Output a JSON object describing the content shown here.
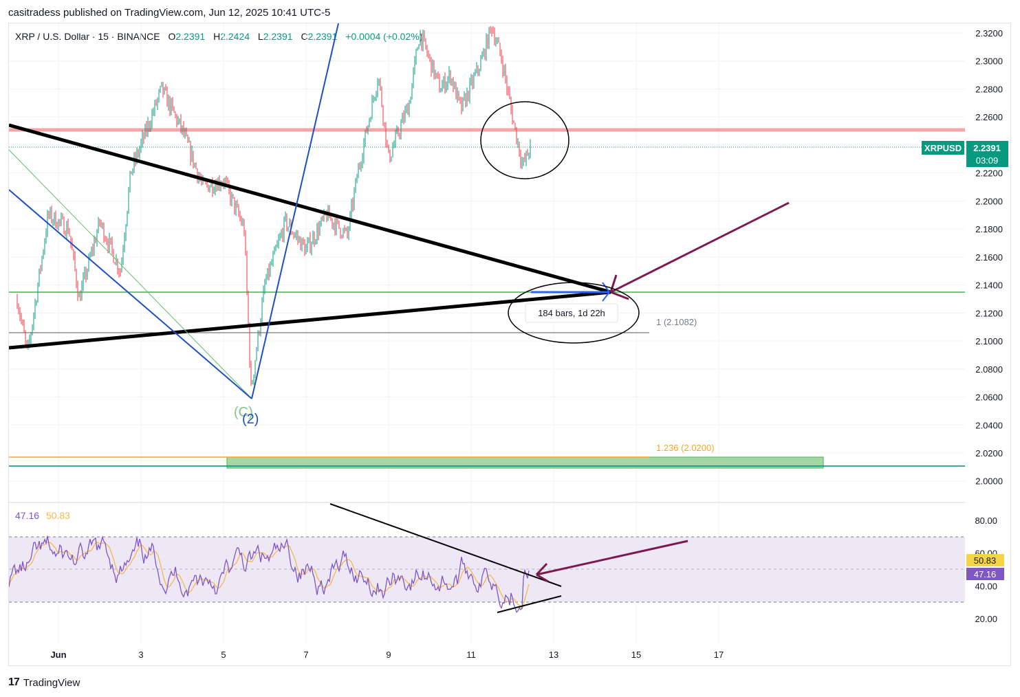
{
  "header": {
    "publisher": "casitradess published on TradingView.com, Jun 12, 2025 10:41 UTC-5"
  },
  "symbol": {
    "name": "XRP / U.S. Dollar · 15 · BINANCE",
    "o_label": "O",
    "o_value": "2.2391",
    "h_label": "H",
    "h_value": "2.2424",
    "l_label": "L",
    "l_value": "2.2391",
    "c_label": "C",
    "c_value": "2.2391",
    "change": "+0.0004 (+0.02%)"
  },
  "price_badge": {
    "ticker": "XRPUSD",
    "price": "2.2391",
    "countdown": "03:09"
  },
  "rsi_legend": {
    "rsi": "47.16",
    "ma": "50.83"
  },
  "rsi_badges": {
    "ma": "50.83",
    "rsi": "47.16"
  },
  "annotations": {
    "bars_label": "184 bars, 1d 22h",
    "fib_1": "1 (2.1082)",
    "fib_1236": "1.236 (2.0200)",
    "wave_c": "(C)",
    "wave_2": "(2)"
  },
  "footer": {
    "brand": "TradingView"
  },
  "colors": {
    "up": "#089981",
    "down": "#f23645",
    "resistance": "#f4a5a5",
    "support_green": "#4caf50",
    "fib_orange": "#f5a623",
    "teal_line": "#00897b",
    "blue_line": "#1e4fc2",
    "maroon_arrow": "#7b1a4f",
    "rsi_line": "#7e57c2",
    "rsi_ma": "#f5b94a",
    "rsi_band": "#ede7f6"
  },
  "chart_data": [
    {
      "type": "candlestick",
      "symbol": "XRPUSD",
      "timeframe": "15",
      "ylim": [
        2.0,
        2.33
      ],
      "y_ticks": [
        "2.3200",
        "2.3000",
        "2.2800",
        "2.2600",
        "2.2400",
        "2.2200",
        "2.2000",
        "2.1800",
        "2.1600",
        "2.1400",
        "2.1200",
        "2.1000",
        "2.0800",
        "2.0600",
        "2.0400",
        "2.0200",
        "2.0000"
      ],
      "x_ticks": [
        "Jun",
        "3",
        "5",
        "7",
        "9",
        "11",
        "13",
        "15",
        "17"
      ],
      "levels": [
        {
          "name": "resistance",
          "value": 2.251
        },
        {
          "name": "last_price",
          "value": 2.2391
        },
        {
          "name": "support",
          "value": 2.1355
        },
        {
          "name": "fib_1",
          "value": 2.1082
        },
        {
          "name": "fib_1.236",
          "value": 2.02
        },
        {
          "name": "teal",
          "value": 2.0135
        }
      ],
      "path_anchors": [
        {
          "x": "May 31 00:00",
          "y": 2.13
        },
        {
          "x": "May 31 06:00",
          "y": 2.09
        },
        {
          "x": "May 31 18:00",
          "y": 2.19
        },
        {
          "x": "Jun 1 06:00",
          "y": 2.18
        },
        {
          "x": "Jun 1 12:00",
          "y": 2.13
        },
        {
          "x": "Jun 2 00:00",
          "y": 2.185
        },
        {
          "x": "Jun 2 12:00",
          "y": 2.15
        },
        {
          "x": "Jun 2 18:00",
          "y": 2.22
        },
        {
          "x": "Jun 3 12:00",
          "y": 2.28
        },
        {
          "x": "Jun 4 00:00",
          "y": 2.25
        },
        {
          "x": "Jun 4 12:00",
          "y": 2.21
        },
        {
          "x": "Jun 5 00:00",
          "y": 2.215
        },
        {
          "x": "Jun 5 12:00",
          "y": 2.18
        },
        {
          "x": "Jun 5 16:00",
          "y": 2.065
        },
        {
          "x": "Jun 6 00:00",
          "y": 2.14
        },
        {
          "x": "Jun 6 12:00",
          "y": 2.185
        },
        {
          "x": "Jun 7 00:00",
          "y": 2.165
        },
        {
          "x": "Jun 7 12:00",
          "y": 2.19
        },
        {
          "x": "Jun 8 00:00",
          "y": 2.175
        },
        {
          "x": "Jun 8 06:00",
          "y": 2.22
        },
        {
          "x": "Jun 8 18:00",
          "y": 2.29
        },
        {
          "x": "Jun 9 00:00",
          "y": 2.23
        },
        {
          "x": "Jun 9 12:00",
          "y": 2.27
        },
        {
          "x": "Jun 9 18:00",
          "y": 2.32
        },
        {
          "x": "Jun 10 06:00",
          "y": 2.28
        },
        {
          "x": "Jun 10 12:00",
          "y": 2.29
        },
        {
          "x": "Jun 10 18:00",
          "y": 2.265
        },
        {
          "x": "Jun 11 06:00",
          "y": 2.3
        },
        {
          "x": "Jun 11 12:00",
          "y": 2.325
        },
        {
          "x": "Jun 11 18:00",
          "y": 2.3
        },
        {
          "x": "Jun 12 00:00",
          "y": 2.26
        },
        {
          "x": "Jun 12 06:00",
          "y": 2.225
        },
        {
          "x": "Jun 12 10:41",
          "y": 2.2391
        }
      ]
    },
    {
      "type": "line",
      "name": "RSI",
      "ylim": [
        10,
        95
      ],
      "y_ticks": [
        "80.00",
        "60.00",
        "40.00",
        "20.00"
      ],
      "bands": [
        70,
        50,
        30
      ],
      "last_values": {
        "rsi": 47.16,
        "ma": 50.83
      }
    }
  ]
}
